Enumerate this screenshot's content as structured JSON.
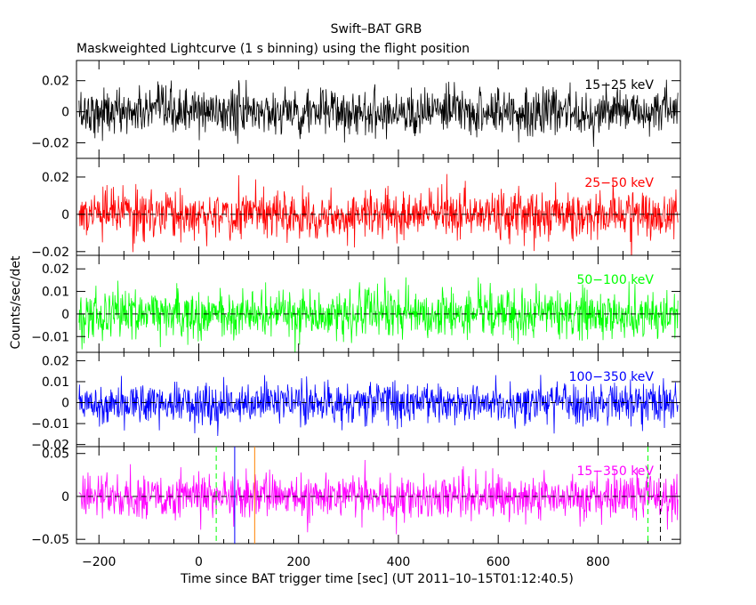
{
  "title": "Swift–BAT GRB",
  "subtitle": "Maskweighted Lightcurve (1 s binning) using the flight position",
  "xlabel": "Time since BAT trigger time [sec] (UT 2011–10–15T01:12:40.5)",
  "ylabel": "Counts/sec/det",
  "chart_data": {
    "type": "line",
    "x_range": [
      -245,
      965
    ],
    "x_ticks": [
      -200,
      0,
      200,
      400,
      600,
      800
    ],
    "x_tick_labels": [
      "−200",
      "0",
      "200",
      "400",
      "600",
      "800"
    ],
    "data_x_range": [
      -240,
      960
    ],
    "binning_sec": 1,
    "vertical_markers": [
      {
        "x": 35,
        "style": "dashed",
        "color": "#00ff00"
      },
      {
        "x": 72,
        "style": "solid",
        "color": "#0000ff"
      },
      {
        "x": 112,
        "style": "solid",
        "color": "#ff8000"
      },
      {
        "x": 900,
        "style": "dashed",
        "color": "#00ff00"
      },
      {
        "x": 925,
        "style": "dashed",
        "color": "#000000"
      }
    ],
    "panels": [
      {
        "band": "15−25 keV",
        "color": "#000000",
        "ylim": [
          -0.03,
          0.033
        ],
        "y_ticks": [
          -0.02,
          0,
          0.02
        ],
        "y_tick_labels": [
          "−0.02",
          "0",
          "0.02"
        ],
        "noise_std": 0.0075,
        "mean": 0.0,
        "show_zero_line": false
      },
      {
        "band": "25−50 keV",
        "color": "#ff0000",
        "ylim": [
          -0.022,
          0.03
        ],
        "y_ticks": [
          -0.02,
          0,
          0.02
        ],
        "y_tick_labels": [
          "−0.02",
          "0",
          "0.02"
        ],
        "noise_std": 0.0065,
        "mean": 0.0,
        "show_zero_line": true
      },
      {
        "band": "50−100 keV",
        "color": "#00ff00",
        "ylim": [
          -0.017,
          0.026
        ],
        "y_ticks": [
          -0.01,
          0,
          0.01,
          0.02
        ],
        "y_tick_labels": [
          "−0.01",
          "0",
          "0.01",
          "0.02"
        ],
        "noise_std": 0.0055,
        "mean": 0.0,
        "show_zero_line": true
      },
      {
        "band": "100−350 keV",
        "color": "#0000ff",
        "ylim": [
          -0.021,
          0.024
        ],
        "y_ticks": [
          -0.02,
          -0.01,
          0,
          0.01,
          0.02
        ],
        "y_tick_labels": [
          "−0.02",
          "−0.01",
          "0",
          "0.01",
          "0.02"
        ],
        "noise_std": 0.005,
        "mean": 0.0,
        "show_zero_line": true
      },
      {
        "band": "15−350 keV",
        "color": "#ff00ff",
        "ylim": [
          -0.055,
          0.058
        ],
        "y_ticks": [
          -0.05,
          0,
          0.05
        ],
        "y_tick_labels": [
          "−0.05",
          "0",
          "0.05"
        ],
        "noise_std": 0.013,
        "mean": 0.0,
        "show_zero_line": true
      }
    ]
  }
}
